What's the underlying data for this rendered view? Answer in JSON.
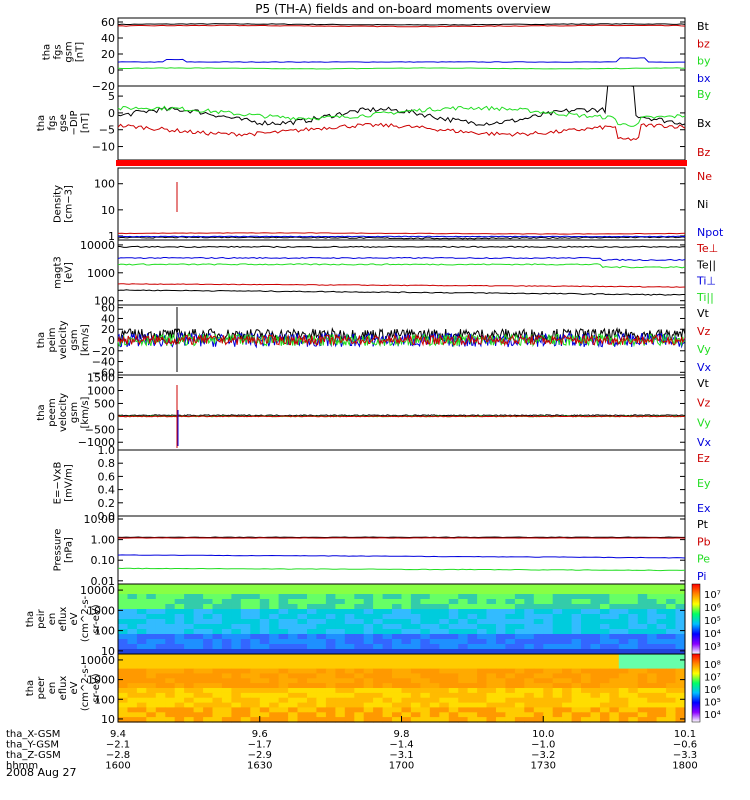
{
  "title": "P5 (TH-A) fields and on-board moments overview",
  "date_label": "2008 Aug 27",
  "colors": {
    "black": "#000000",
    "red": "#cc0000",
    "green": "#22dd22",
    "blue": "#0000dd",
    "bar_red": "#ff0000"
  },
  "panels": [
    {
      "id": "fgs-gsm",
      "ylabel": [
        "tha",
        "fgs",
        "gsm",
        "[nT]"
      ],
      "ticks": [
        {
          "v": 60,
          "t": "60"
        },
        {
          "v": 40,
          "t": "40"
        },
        {
          "v": 20,
          "t": "20"
        },
        {
          "v": 0,
          "t": "0"
        },
        {
          "v": -20,
          "t": "−20"
        }
      ],
      "legend": [
        {
          "t": "Bt",
          "c": "black"
        },
        {
          "t": "bz",
          "c": "red"
        },
        {
          "t": "by",
          "c": "green"
        },
        {
          "t": "bx",
          "c": "blue"
        }
      ]
    },
    {
      "id": "fgs-gse",
      "ylabel": [
        "tha",
        "fgs",
        "gse",
        "−DIP",
        "[nT]"
      ],
      "ticks": [
        {
          "v": 5,
          "t": "5"
        },
        {
          "v": 0,
          "t": "0"
        },
        {
          "v": -5,
          "t": "−5"
        },
        {
          "v": -10,
          "t": "−10"
        }
      ],
      "legend": [
        {
          "t": "By",
          "c": "green"
        },
        {
          "t": "Bx",
          "c": "black"
        },
        {
          "t": "Bz",
          "c": "red"
        }
      ]
    },
    {
      "id": "density",
      "ylabel": [
        "Density",
        "[cm−3]"
      ],
      "ticks": [
        {
          "v": 100,
          "t": "100"
        },
        {
          "v": 10,
          "t": "10"
        },
        {
          "v": 1,
          "t": "1"
        }
      ],
      "legend": [
        {
          "t": "Ne",
          "c": "red"
        },
        {
          "t": "Ni",
          "c": "black"
        },
        {
          "t": "Npot",
          "c": "blue"
        }
      ]
    },
    {
      "id": "temperature",
      "ylabel": [
        "magt3",
        "[eV]"
      ],
      "ticks": [
        {
          "v": 10000,
          "t": "10000"
        },
        {
          "v": 1000,
          "t": "1000"
        },
        {
          "v": 100,
          "t": "100"
        }
      ],
      "legend": [
        {
          "t": "Te⊥",
          "c": "red"
        },
        {
          "t": "Te||",
          "c": "black"
        },
        {
          "t": "Ti⊥",
          "c": "blue"
        },
        {
          "t": "Ti||",
          "c": "green"
        }
      ]
    },
    {
      "id": "peim-velocity",
      "ylabel": [
        "tha",
        "peim",
        "velocity",
        "gsm",
        "[km/s]"
      ],
      "ticks": [
        {
          "v": 60,
          "t": "60"
        },
        {
          "v": 40,
          "t": "40"
        },
        {
          "v": 20,
          "t": "20"
        },
        {
          "v": 0,
          "t": "0"
        },
        {
          "v": -20,
          "t": "−20"
        },
        {
          "v": -40,
          "t": "−40"
        },
        {
          "v": -60,
          "t": "−60"
        }
      ],
      "legend": [
        {
          "t": "Vt",
          "c": "black"
        },
        {
          "t": "Vz",
          "c": "red"
        },
        {
          "t": "Vy",
          "c": "green"
        },
        {
          "t": "Vx",
          "c": "blue"
        }
      ]
    },
    {
      "id": "peem-velocity",
      "ylabel": [
        "tha",
        "peem",
        "velocity",
        "gsm",
        "[km/s]"
      ],
      "ticks": [
        {
          "v": 1500,
          "t": "1500"
        },
        {
          "v": 1000,
          "t": "1000"
        },
        {
          "v": 500,
          "t": "500"
        },
        {
          "v": 0,
          "t": "0"
        },
        {
          "v": -500,
          "t": "−500"
        },
        {
          "v": -1000,
          "t": "−1000"
        }
      ],
      "legend": [
        {
          "t": "Vt",
          "c": "black"
        },
        {
          "t": "Vz",
          "c": "red"
        },
        {
          "t": "Vy",
          "c": "green"
        },
        {
          "t": "Vx",
          "c": "blue"
        }
      ]
    },
    {
      "id": "e-field",
      "ylabel": [
        "E=−VxB",
        "[mV/m]"
      ],
      "ticks": [
        {
          "v": 1,
          "t": "1.0"
        },
        {
          "v": 0.8,
          "t": "0.8"
        },
        {
          "v": 0.6,
          "t": "0.6"
        },
        {
          "v": 0.4,
          "t": "0.4"
        },
        {
          "v": 0.2,
          "t": "0.2"
        },
        {
          "v": 0,
          "t": "0.0"
        }
      ],
      "legend": [
        {
          "t": "Ez",
          "c": "red"
        },
        {
          "t": "Ey",
          "c": "green"
        },
        {
          "t": "Ex",
          "c": "blue"
        }
      ]
    },
    {
      "id": "pressure",
      "ylabel": [
        "Pressure",
        "[nPa]"
      ],
      "ticks": [
        {
          "v": 10,
          "t": "10.00"
        },
        {
          "v": 1,
          "t": "1.00"
        },
        {
          "v": 0.1,
          "t": "0.10"
        },
        {
          "v": 0.01,
          "t": "0.01"
        }
      ],
      "legend": [
        {
          "t": "Pt",
          "c": "black"
        },
        {
          "t": "Pb",
          "c": "red"
        },
        {
          "t": "Pe",
          "c": "green"
        },
        {
          "t": "Pi",
          "c": "blue"
        }
      ]
    },
    {
      "id": "peir-eflux",
      "ylabel": [
        "tha",
        "peir",
        "en",
        "eflux",
        "eV",
        "(cm^2-s-",
        "sr-eV)"
      ],
      "ticks": [
        {
          "v": 10000,
          "t": "10000"
        },
        {
          "v": 1000,
          "t": "1000"
        },
        {
          "v": 100,
          "t": "100"
        },
        {
          "v": 10,
          "t": "10"
        }
      ],
      "legend": [],
      "colorbar": [
        "10⁷",
        "10⁶",
        "10⁵",
        "10⁴",
        "10³"
      ]
    },
    {
      "id": "peer-eflux",
      "ylabel": [
        "tha",
        "peer",
        "en",
        "eflux",
        "eV",
        "(cm^2-s-",
        "sr-eV)"
      ],
      "ticks": [
        {
          "v": 10000,
          "t": "10000"
        },
        {
          "v": 1000,
          "t": "1000"
        },
        {
          "v": 100,
          "t": "100"
        },
        {
          "v": 10,
          "t": "10"
        }
      ],
      "legend": [],
      "colorbar": [
        "10⁸",
        "10⁷",
        "10⁶",
        "10⁵",
        "10⁴"
      ]
    }
  ],
  "axis_rows": [
    {
      "label": "tha_X-GSM",
      "values": [
        "9.4",
        "9.6",
        "9.8",
        "10.0",
        "10.1"
      ]
    },
    {
      "label": "tha_Y-GSM",
      "values": [
        "−2.1",
        "−1.7",
        "−1.4",
        "−1.0",
        "−0.6"
      ]
    },
    {
      "label": "tha_Z-GSM",
      "values": [
        "−2.8",
        "−2.9",
        "−3.1",
        "−3.2",
        "−3.3"
      ]
    },
    {
      "label": "hhmm",
      "values": [
        "1600",
        "1630",
        "1700",
        "1730",
        "1800"
      ]
    }
  ],
  "chart_data": {
    "type": "line",
    "title": "P5 (TH-A) fields and on-board moments overview",
    "x": [
      "1600",
      "1630",
      "1700",
      "1730",
      "1800"
    ],
    "xlabel": "hhmm",
    "series": [
      {
        "name": "Bt",
        "values": [
          57,
          58,
          57,
          57,
          57
        ]
      },
      {
        "name": "bz",
        "values": [
          55,
          56,
          55,
          55,
          56
        ]
      },
      {
        "name": "by",
        "values": [
          2,
          2,
          2,
          2,
          1
        ]
      },
      {
        "name": "bx",
        "values": [
          10,
          9,
          9,
          10,
          9
        ]
      },
      {
        "name": "Ne",
        "values": [
          1.2,
          1.2,
          1.2,
          1.2,
          1.3
        ]
      },
      {
        "name": "Ni",
        "values": [
          0.8,
          0.8,
          0.8,
          0.9,
          0.8
        ]
      },
      {
        "name": "Te⊥",
        "values": [
          400,
          420,
          400,
          380,
          300
        ]
      },
      {
        "name": "Ti⊥",
        "values": [
          3500,
          3500,
          3400,
          3300,
          2800
        ]
      },
      {
        "name": "Ti||",
        "values": [
          2000,
          2000,
          2000,
          1800,
          1500
        ]
      },
      {
        "name": "Pt",
        "values": [
          1.3,
          1.3,
          1.3,
          1.3,
          1.3
        ]
      },
      {
        "name": "Pb",
        "values": [
          1.25,
          1.25,
          1.25,
          1.25,
          1.25
        ]
      },
      {
        "name": "Pe",
        "values": [
          0.04,
          0.04,
          0.04,
          0.04,
          0.03
        ]
      },
      {
        "name": "Pi",
        "values": [
          0.18,
          0.17,
          0.16,
          0.15,
          0.13
        ]
      }
    ]
  }
}
